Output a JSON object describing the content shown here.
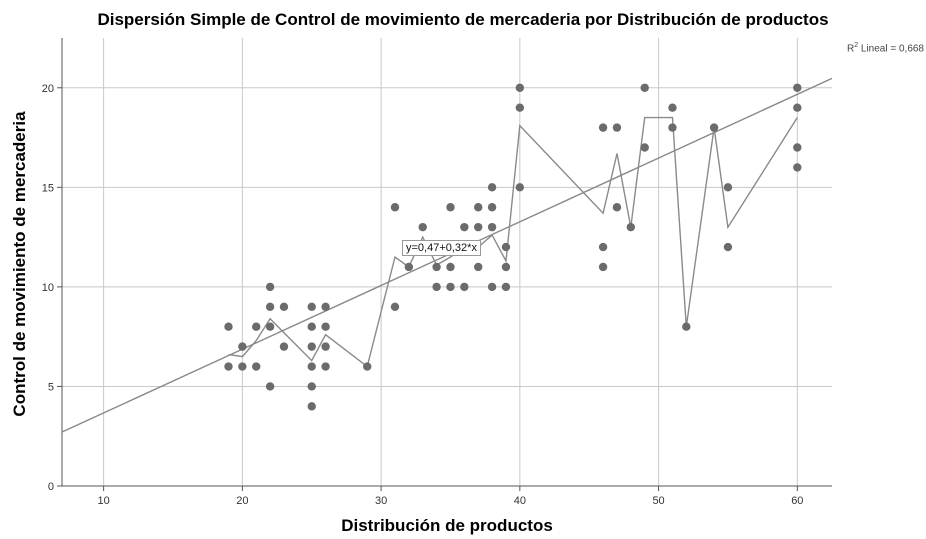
{
  "chart_data": {
    "type": "scatter",
    "title": "Dispersión Simple de Control de movimiento de mercaderia por Distribución de productos",
    "xlabel": "Distribución de productos",
    "ylabel": "Control de movimiento de mercaderia",
    "xlim": [
      7,
      62.5
    ],
    "ylim": [
      0,
      22.5
    ],
    "xticks": [
      10,
      20,
      30,
      40,
      50,
      60
    ],
    "yticks": [
      0,
      5,
      10,
      15,
      20
    ],
    "grid": true,
    "r2_label_prefix": "R",
    "r2_label_suffix": " Lineal = 0,668",
    "equation_label": "y=0,47+0,32*x",
    "regression": {
      "intercept": 0.47,
      "slope": 0.32
    },
    "points": [
      [
        19,
        8
      ],
      [
        19,
        6
      ],
      [
        20,
        7
      ],
      [
        20,
        6
      ],
      [
        21,
        8
      ],
      [
        21,
        6
      ],
      [
        22,
        10
      ],
      [
        22,
        9
      ],
      [
        22,
        8
      ],
      [
        22,
        5
      ],
      [
        23,
        9
      ],
      [
        23,
        7
      ],
      [
        25,
        9
      ],
      [
        25,
        8
      ],
      [
        25,
        7
      ],
      [
        25,
        6
      ],
      [
        25,
        5
      ],
      [
        25,
        4
      ],
      [
        26,
        9
      ],
      [
        26,
        8
      ],
      [
        26,
        7
      ],
      [
        26,
        6
      ],
      [
        29,
        6
      ],
      [
        31,
        14
      ],
      [
        31,
        9
      ],
      [
        32,
        11
      ],
      [
        33,
        13
      ],
      [
        33,
        12
      ],
      [
        34,
        11
      ],
      [
        34,
        10
      ],
      [
        35,
        14
      ],
      [
        35,
        11
      ],
      [
        35,
        10
      ],
      [
        36,
        13
      ],
      [
        36,
        10
      ],
      [
        37,
        14
      ],
      [
        37,
        13
      ],
      [
        37,
        11
      ],
      [
        38,
        15
      ],
      [
        38,
        14
      ],
      [
        38,
        13
      ],
      [
        38,
        10
      ],
      [
        39,
        12
      ],
      [
        39,
        11
      ],
      [
        39,
        10
      ],
      [
        40,
        20
      ],
      [
        40,
        19
      ],
      [
        40,
        15
      ],
      [
        46,
        18
      ],
      [
        46,
        12
      ],
      [
        46,
        11
      ],
      [
        47,
        18
      ],
      [
        47,
        14
      ],
      [
        48,
        13
      ],
      [
        49,
        20
      ],
      [
        49,
        17
      ],
      [
        51,
        19
      ],
      [
        51,
        18
      ],
      [
        52,
        8
      ],
      [
        54,
        18
      ],
      [
        55,
        15
      ],
      [
        55,
        12
      ],
      [
        60,
        20
      ],
      [
        60,
        19
      ],
      [
        60,
        17
      ],
      [
        60,
        16
      ]
    ],
    "fit_line_points": [
      [
        19,
        6.6
      ],
      [
        20,
        6.5
      ],
      [
        21,
        7.3
      ],
      [
        22,
        8.4
      ],
      [
        23,
        7.7
      ],
      [
        25,
        6.3
      ],
      [
        26,
        7.6
      ],
      [
        29,
        6.0
      ],
      [
        31,
        11.5
      ],
      [
        32,
        11.0
      ],
      [
        33,
        12.5
      ],
      [
        34,
        11.1
      ],
      [
        35,
        11.5
      ],
      [
        36,
        12.0
      ],
      [
        37,
        12.0
      ],
      [
        38,
        12.6
      ],
      [
        39,
        11.3
      ],
      [
        40,
        18.1
      ],
      [
        46,
        13.7
      ],
      [
        47,
        16.7
      ],
      [
        48,
        13.0
      ],
      [
        49,
        18.5
      ],
      [
        51,
        18.5
      ],
      [
        52,
        8.0
      ],
      [
        54,
        18.0
      ],
      [
        55,
        13.0
      ],
      [
        60,
        18.5
      ]
    ]
  }
}
